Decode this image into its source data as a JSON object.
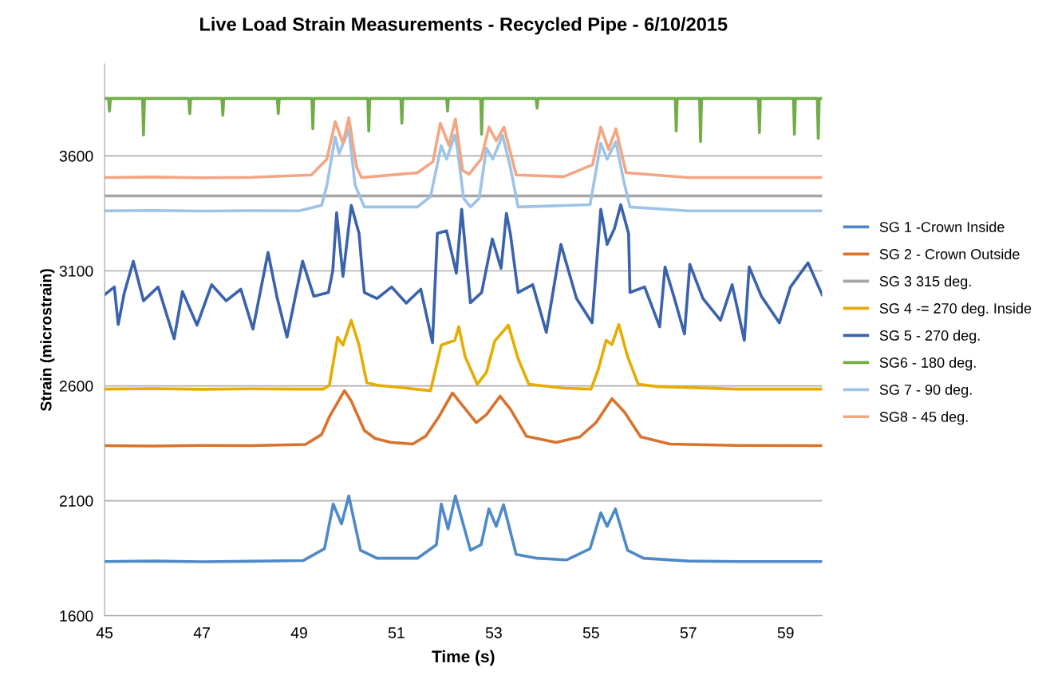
{
  "chart_data": {
    "type": "line",
    "title": "Live Load Strain Measurements - Recycled Pipe - 6/10/2015",
    "xlabel": "Time (s)",
    "ylabel": "Strain (microstrain)",
    "xlim": [
      45,
      59.75
    ],
    "xticks": [
      45,
      47,
      49,
      51,
      53,
      55,
      57,
      59
    ],
    "ylim": [
      1600,
      4000
    ],
    "yticks": [
      1600,
      2100,
      2600,
      3100,
      3600
    ],
    "grid": "y",
    "legend": "right",
    "marker": "none",
    "line_style": "solid",
    "series": [
      {
        "name": "SG 1 -Crown Inside",
        "color": "#4e8ac8",
        "x": [
          45,
          46,
          47,
          48,
          49.08,
          49.52,
          49.7,
          49.87,
          50.02,
          50.26,
          50.6,
          51.43,
          51.82,
          51.92,
          52.06,
          52.21,
          52.52,
          52.74,
          52.9,
          53.05,
          53.2,
          53.46,
          53.9,
          54.5,
          54.98,
          55.2,
          55.33,
          55.5,
          55.75,
          56.08,
          57,
          58,
          59.75
        ],
        "values": [
          1836,
          1838,
          1835,
          1837,
          1840,
          1892,
          2086,
          2000,
          2121,
          1885,
          1850,
          1850,
          1909,
          2086,
          1978,
          2121,
          1885,
          1909,
          2065,
          1989,
          2083,
          1867,
          1850,
          1843,
          1892,
          2048,
          1989,
          2065,
          1885,
          1850,
          1838,
          1836,
          1836
        ]
      },
      {
        "name": "SG 2 - Crown Outside",
        "color": "#d9722b",
        "x": [
          45,
          46,
          47,
          48,
          49.13,
          49.46,
          49.62,
          49.93,
          50.07,
          50.34,
          50.56,
          50.89,
          51.33,
          51.6,
          51.87,
          52.15,
          52.64,
          52.85,
          53.13,
          53.34,
          53.67,
          54.28,
          54.77,
          55.1,
          55.43,
          55.69,
          56.02,
          56.62,
          58,
          59.75
        ],
        "values": [
          2340,
          2338,
          2341,
          2340,
          2345,
          2388,
          2465,
          2579,
          2534,
          2406,
          2371,
          2354,
          2347,
          2381,
          2465,
          2569,
          2440,
          2475,
          2555,
          2499,
          2381,
          2354,
          2378,
          2440,
          2544,
          2485,
          2378,
          2347,
          2341,
          2340
        ]
      },
      {
        "name": "SG 3 315 deg.",
        "color": "#a5a5a5",
        "x": [
          45,
          59.75
        ],
        "values": [
          3426,
          3426
        ]
      },
      {
        "name": "SG 4 -= 270 deg. Inside",
        "color": "#e6ac00",
        "x": [
          45,
          46,
          47,
          48,
          49,
          49.5,
          49.62,
          49.79,
          49.9,
          50.07,
          50.23,
          50.39,
          50.6,
          51.7,
          51.92,
          52.2,
          52.28,
          52.41,
          52.66,
          52.85,
          53.02,
          53.3,
          53.5,
          53.72,
          54.44,
          55.0,
          55.15,
          55.31,
          55.43,
          55.57,
          55.75,
          55.97,
          56.35,
          58,
          59.75
        ],
        "values": [
          2586,
          2588,
          2585,
          2587,
          2586,
          2586,
          2603,
          2812,
          2777,
          2885,
          2777,
          2614,
          2603,
          2579,
          2777,
          2798,
          2857,
          2728,
          2607,
          2659,
          2795,
          2864,
          2718,
          2607,
          2590,
          2586,
          2673,
          2798,
          2780,
          2867,
          2728,
          2607,
          2597,
          2586,
          2586
        ]
      },
      {
        "name": "SG 5 - 270 deg.",
        "color": "#3a62ad",
        "x": [
          45,
          45.2,
          45.28,
          45.4,
          45.59,
          45.8,
          46.1,
          46.43,
          46.6,
          46.9,
          47.2,
          47.5,
          47.8,
          48.05,
          48.36,
          48.55,
          48.75,
          49.07,
          49.3,
          49.6,
          49.69,
          49.77,
          49.9,
          50.07,
          50.23,
          50.3,
          50.34,
          50.6,
          50.9,
          51.2,
          51.5,
          51.74,
          51.84,
          52.03,
          52.23,
          52.34,
          52.52,
          52.75,
          52.97,
          53.15,
          53.26,
          53.34,
          53.5,
          53.8,
          54.08,
          54.38,
          54.7,
          55.02,
          55.2,
          55.33,
          55.48,
          55.61,
          55.77,
          55.8,
          56.1,
          56.41,
          56.52,
          56.7,
          56.92,
          57.03,
          57.3,
          57.66,
          57.9,
          58.15,
          58.25,
          58.5,
          58.87,
          59.1,
          59.46,
          59.75
        ],
        "values": [
          2996,
          3030,
          2867,
          3000,
          3142,
          2970,
          3030,
          2805,
          3010,
          2864,
          3040,
          2970,
          3020,
          2847,
          3180,
          2980,
          2812,
          3142,
          2990,
          3006,
          3100,
          3353,
          3076,
          3385,
          3263,
          3090,
          3006,
          2980,
          3030,
          2960,
          3020,
          2788,
          3263,
          3274,
          3090,
          3368,
          2961,
          3006,
          3239,
          3111,
          3350,
          3263,
          3006,
          3040,
          2833,
          3215,
          2980,
          2874,
          3368,
          3215,
          3284,
          3388,
          3263,
          3006,
          3030,
          2857,
          3117,
          2990,
          2826,
          3128,
          2980,
          2885,
          3040,
          2798,
          3117,
          2990,
          2874,
          3030,
          3135,
          2996
        ]
      },
      {
        "name": "SG6 - 180 deg.",
        "color": "#70ad47",
        "x": [
          45,
          45.08,
          45.1,
          45.12,
          45.78,
          45.8,
          45.82,
          46.73,
          46.75,
          46.77,
          47.41,
          47.43,
          47.45,
          48.55,
          48.57,
          48.59,
          49.26,
          49.28,
          49.3,
          50.41,
          50.43,
          50.45,
          51.09,
          51.11,
          51.13,
          52.03,
          52.05,
          52.07,
          52.73,
          52.75,
          52.77,
          53.87,
          53.89,
          53.91,
          56.73,
          56.75,
          56.77,
          57.23,
          57.25,
          57.27,
          58.44,
          58.46,
          58.48,
          59.16,
          59.18,
          59.2,
          59.65,
          59.67,
          59.69,
          59.75
        ],
        "values": [
          3850,
          3850,
          3795,
          3850,
          3850,
          3691,
          3850,
          3850,
          3784,
          3850,
          3850,
          3777,
          3850,
          3850,
          3784,
          3850,
          3850,
          3718,
          3850,
          3850,
          3708,
          3850,
          3850,
          3742,
          3850,
          3850,
          3795,
          3850,
          3850,
          3694,
          3850,
          3850,
          3808,
          3850,
          3850,
          3708,
          3850,
          3850,
          3662,
          3850,
          3850,
          3701,
          3850,
          3850,
          3694,
          3850,
          3850,
          3676,
          3850,
          3850
        ]
      },
      {
        "name": "SG 7 - 90 deg.",
        "color": "#9dc3e6",
        "x": [
          45,
          46,
          47,
          48,
          49,
          49.46,
          49.57,
          49.74,
          49.82,
          50.02,
          50.15,
          50.34,
          51.43,
          51.7,
          51.92,
          52.03,
          52.2,
          52.25,
          52.38,
          52.52,
          52.7,
          52.85,
          52.98,
          53.18,
          53.34,
          53.5,
          54.98,
          55.2,
          55.33,
          55.51,
          55.67,
          55.8,
          57,
          59.75
        ],
        "values": [
          3361,
          3363,
          3360,
          3362,
          3361,
          3385,
          3472,
          3683,
          3611,
          3714,
          3472,
          3378,
          3378,
          3423,
          3645,
          3586,
          3690,
          3634,
          3416,
          3378,
          3416,
          3634,
          3586,
          3690,
          3551,
          3378,
          3388,
          3655,
          3586,
          3662,
          3492,
          3378,
          3361,
          3361
        ]
      },
      {
        "name": "SG8 - 45 deg.",
        "color": "#f4a582",
        "x": [
          45,
          46,
          47,
          48,
          49.25,
          49.57,
          49.74,
          49.9,
          50.02,
          50.18,
          50.28,
          51.43,
          51.75,
          51.9,
          52.08,
          52.21,
          52.36,
          52.49,
          52.74,
          52.9,
          53.05,
          53.21,
          53.46,
          54.44,
          55.03,
          55.2,
          55.36,
          55.51,
          55.72,
          57,
          59.75
        ],
        "values": [
          3506,
          3508,
          3505,
          3507,
          3517,
          3586,
          3749,
          3655,
          3766,
          3551,
          3506,
          3527,
          3575,
          3742,
          3645,
          3760,
          3537,
          3520,
          3586,
          3725,
          3666,
          3725,
          3517,
          3510,
          3562,
          3725,
          3628,
          3718,
          3527,
          3506,
          3506
        ]
      }
    ]
  }
}
